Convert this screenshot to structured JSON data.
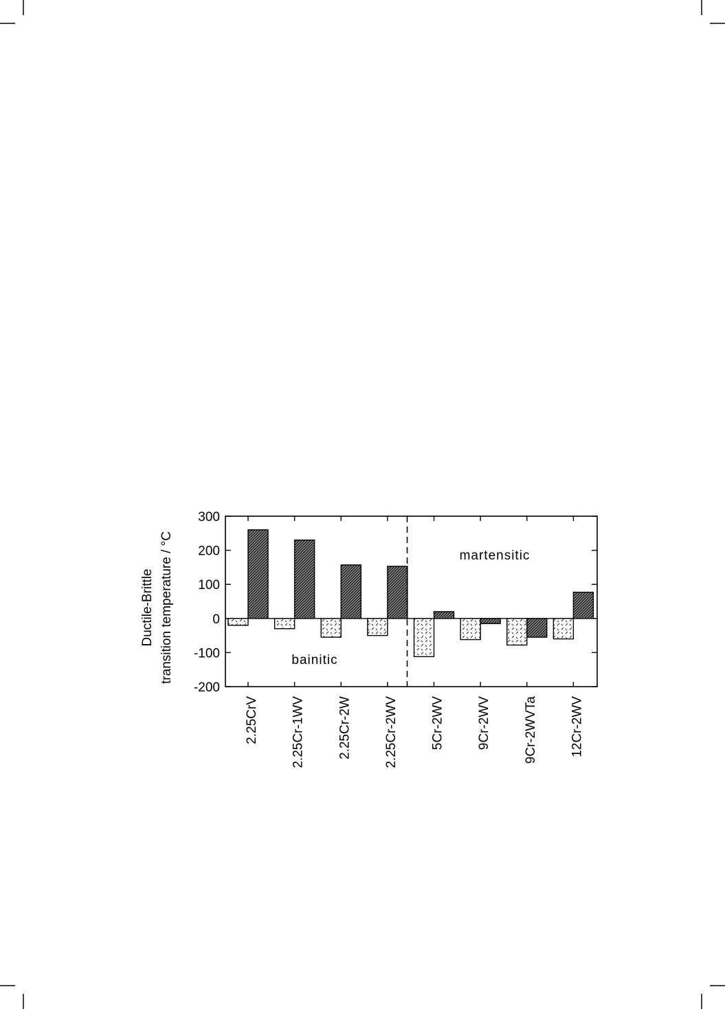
{
  "chart_data": {
    "type": "bar",
    "ylabel_line1": "Ductile-Brittle",
    "ylabel_line2": "transition temperature / °C",
    "ylim": [
      -200,
      300
    ],
    "yticks": [
      300,
      200,
      100,
      0,
      -100,
      -200
    ],
    "categories": [
      "2.25CrV",
      "2.25Cr-1WV",
      "2.25Cr-2W",
      "2.25Cr-2WV",
      "5Cr-2WV",
      "9Cr-2WV",
      "9Cr-2WVTa",
      "12Cr-2WV"
    ],
    "series": [
      {
        "values": [
          -20,
          -30,
          -55,
          -50,
          -112,
          -62,
          -78,
          -60
        ],
        "pattern": "light-dashes"
      },
      {
        "values": [
          260,
          230,
          157,
          153,
          20,
          -15,
          -55,
          77
        ],
        "pattern": "dark-hatch"
      }
    ],
    "regions": [
      {
        "label": "bainitic"
      },
      {
        "label": "martensitic"
      }
    ],
    "grid": false,
    "legend": "none"
  }
}
